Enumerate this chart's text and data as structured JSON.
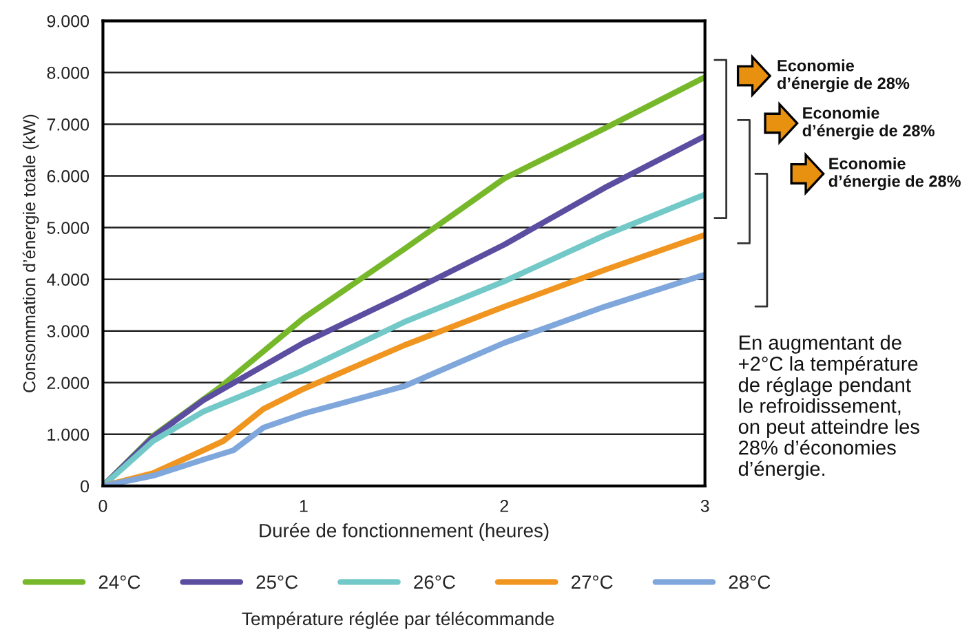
{
  "chart_data": {
    "type": "line",
    "xlabel": "Durée de fonctionnement (heures)",
    "ylabel": "Consommation d’énergie totale (kW)",
    "legend_title": "Température réglée par télécommande",
    "xlim": [
      0,
      3
    ],
    "xticks": [
      0,
      1,
      2,
      3
    ],
    "ylim": [
      0,
      9000
    ],
    "yticks": [
      0,
      {
        "value": 1000,
        "label": "1.000"
      },
      {
        "value": 2000,
        "label": "2.000"
      },
      {
        "value": 3000,
        "label": "3.000"
      },
      {
        "value": 4000,
        "label": "4.000"
      },
      {
        "value": 5000,
        "label": "5.000"
      },
      {
        "value": 6000,
        "label": "6.000"
      },
      {
        "value": 7000,
        "label": "7.000"
      },
      {
        "value": 8000,
        "label": "8.000"
      },
      {
        "value": 9000,
        "label": "9.000"
      }
    ],
    "grid": "y",
    "legend": "bottom",
    "marker": "none",
    "line_style": "solid",
    "series": [
      {
        "name": "24°C",
        "color": "#76b82a",
        "x": [
          0,
          0.25,
          0.59,
          1,
          1.5,
          2,
          2.5,
          3
        ],
        "values": [
          0,
          970,
          1930,
          3250,
          4580,
          5950,
          6920,
          7910
        ]
      },
      {
        "name": "25°C",
        "color": "#5b4ea1",
        "x": [
          0,
          0.25,
          0.5,
          1,
          1.5,
          2,
          2.5,
          3
        ],
        "values": [
          0,
          950,
          1660,
          2770,
          3700,
          4670,
          5770,
          6770
        ]
      },
      {
        "name": "26°C",
        "color": "#73c9c8",
        "x": [
          0,
          0.25,
          0.5,
          1,
          1.5,
          2,
          2.5,
          3
        ],
        "values": [
          0,
          870,
          1440,
          2240,
          3170,
          3960,
          4850,
          5640
        ]
      },
      {
        "name": "27°C",
        "color": "#f0951f",
        "x": [
          0,
          0.25,
          0.5,
          0.6,
          0.8,
          1,
          1.5,
          2,
          2.5,
          3
        ],
        "values": [
          0,
          250,
          690,
          870,
          1490,
          1880,
          2720,
          3470,
          4180,
          4860
        ]
      },
      {
        "name": "28°C",
        "color": "#7fa7dc",
        "x": [
          0,
          0.25,
          0.5,
          0.65,
          0.8,
          1,
          1.5,
          2,
          2.5,
          3
        ],
        "values": [
          0,
          200,
          510,
          690,
          1130,
          1400,
          1930,
          2770,
          3470,
          4090
        ]
      }
    ],
    "annotations": [
      "Economie\nd’énergie de 28%",
      "Economie\nd’énergie de 28%",
      "Economie\nd’énergie de 28%",
      "En augmentant de\n+2°C la température\nde réglage pendant\nle refroidissement,\non peut atteindre les\n28% d’économies\nd’énergie."
    ]
  }
}
